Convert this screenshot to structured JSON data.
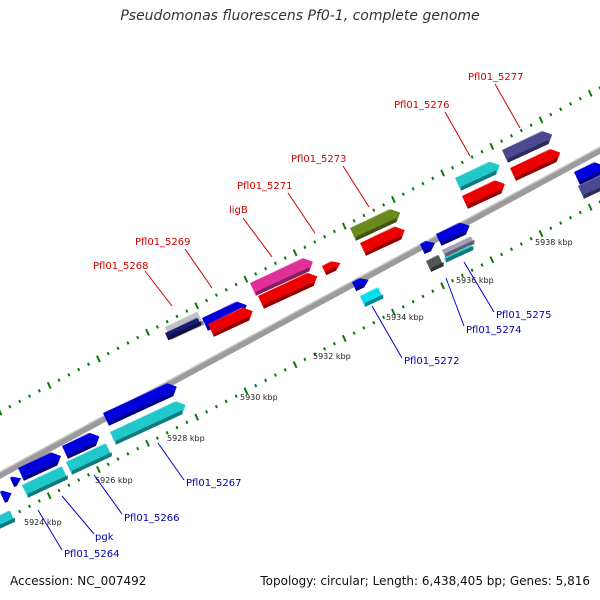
{
  "title": "Pseudomonas fluorescens Pf0-1, complete genome",
  "footer": {
    "accession": "Accession: NC_007492",
    "info": "Topology: circular; Length: 6,438,405 bp; Genes: 5,816"
  },
  "colors": {
    "background": "#ffffff",
    "backbone": "#9b9b9b",
    "upper_label": "#cc0000",
    "lower_label": "#0000aa",
    "leader_red": "#cc0000",
    "leader_blue": "#0000cc",
    "dots": "#0a7a0a",
    "kbp_label": "#222222"
  },
  "scale_labels": [
    "5924 kbp",
    "5926 kbp",
    "5928 kbp",
    "5930 kbp",
    "5932 kbp",
    "5934 kbp",
    "5936 kbp",
    "5938 kbp"
  ],
  "upper_gene_labels": [
    "Pfl01_5268",
    "Pfl01_5269",
    "ligB",
    "Pfl01_5271",
    "Pfl01_5273",
    "Pfl01_5276",
    "Pfl01_5277"
  ],
  "lower_gene_labels": [
    "Pfl01_5264",
    "pgk",
    "Pfl01_5266",
    "Pfl01_5267",
    "Pfl01_5272",
    "Pfl01_5274",
    "Pfl01_5275"
  ]
}
